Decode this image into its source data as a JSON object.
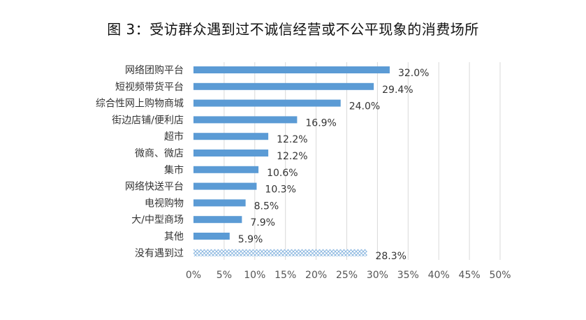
{
  "chart_data": {
    "type": "bar",
    "orientation": "horizontal",
    "title": "图 3：受访群众遇到过不诚信经营或不公平现象的消费场所",
    "categories": [
      "网络团购平台",
      "短视频带货平台",
      "综合性网上购物商城",
      "街边店铺/便利店",
      "超市",
      "微商、微店",
      "集市",
      "网络快送平台",
      "电视购物",
      "大/中型商场",
      "其他",
      "没有遇到过"
    ],
    "values": [
      32.0,
      29.4,
      24.0,
      16.9,
      12.2,
      12.2,
      10.6,
      10.3,
      8.5,
      7.9,
      5.9,
      28.3
    ],
    "value_labels": [
      "32.0%",
      "29.4%",
      "24.0%",
      "16.9%",
      "12.2%",
      "12.2%",
      "10.6%",
      "10.3%",
      "8.5%",
      "7.9%",
      "5.9%",
      "28.3%"
    ],
    "xlim": [
      0,
      50
    ],
    "xticks": [
      0,
      5,
      10,
      15,
      20,
      25,
      30,
      35,
      40,
      45,
      50
    ],
    "xtick_labels": [
      "0%",
      "5%",
      "10%",
      "15%",
      "20%",
      "25%",
      "30%",
      "35%",
      "40%",
      "45%",
      "50%"
    ],
    "grid": "vertical",
    "bar_color": "#5b9bd5",
    "highlight_pattern_index": 11,
    "highlight_pattern": "crosshatch",
    "legend": "none"
  }
}
